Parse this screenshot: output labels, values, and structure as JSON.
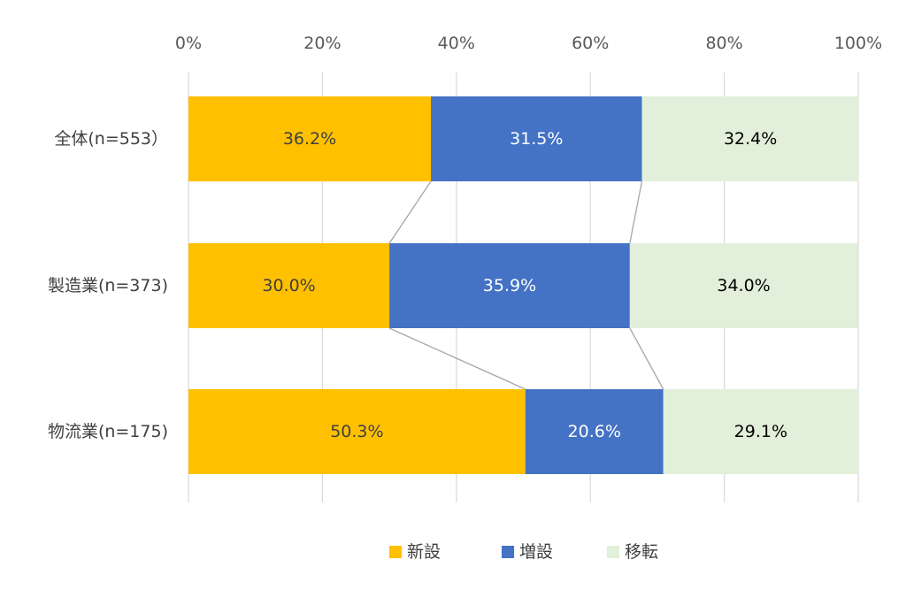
{
  "chart_data": {
    "type": "bar",
    "orientation": "horizontal",
    "stacked": "percent",
    "title": "",
    "xlabel": "",
    "ylabel": "",
    "xlim": [
      0,
      100
    ],
    "x_ticks": [
      "0%",
      "20%",
      "40%",
      "60%",
      "80%",
      "100%"
    ],
    "x_tick_values": [
      0,
      20,
      40,
      60,
      80,
      100
    ],
    "x_axis_position": "top",
    "grid": true,
    "legend_position": "bottom",
    "series_lines": true,
    "categories": [
      "全体(n=553）",
      "製造業(n=373)",
      "物流業(n=175)"
    ],
    "series": [
      {
        "name": "新設",
        "color": "#FFC000",
        "label_color": "#404040",
        "values": [
          36.2,
          30.0,
          50.3
        ],
        "labels": [
          "36.2%",
          "30.0%",
          "50.3%"
        ]
      },
      {
        "name": "増設",
        "color": "#4472C4",
        "label_color": "#FFFFFF",
        "values": [
          31.5,
          35.9,
          20.6
        ],
        "labels": [
          "31.5%",
          "35.9%",
          "20.6%"
        ]
      },
      {
        "name": "移転",
        "color": "#E2EFDA",
        "label_color": "#000000",
        "values": [
          32.4,
          34.0,
          29.1
        ],
        "labels": [
          "32.4%",
          "34.0%",
          "29.1%"
        ]
      }
    ]
  }
}
